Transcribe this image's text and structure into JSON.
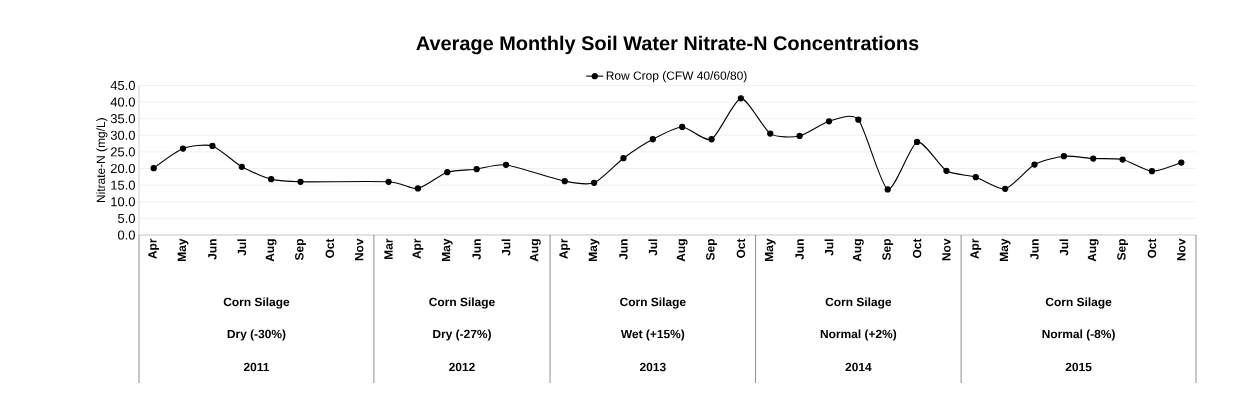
{
  "chart_data": {
    "type": "line",
    "title": "Average Monthly Soil Water Nitrate-N Concentrations",
    "ylabel": "Nitrate-N  (mg/L)",
    "categories": [
      "Apr",
      "May",
      "Jun",
      "Jul",
      "Aug",
      "Sep",
      "Oct",
      "Nov",
      "Mar",
      "Apr",
      "May",
      "Jun",
      "Jul",
      "Aug",
      "Apr",
      "May",
      "Jun",
      "Jul",
      "Aug",
      "Sep",
      "Oct",
      "May",
      "Jun",
      "Jul",
      "Aug",
      "Sep",
      "Oct",
      "Nov",
      "Apr",
      "May",
      "Jun",
      "Jul",
      "Aug",
      "Sep",
      "Oct",
      "Nov"
    ],
    "series": [
      {
        "name": "Row Crop (CFW 40/60/80)",
        "color": "#000000",
        "values": [
          20.1,
          26.0,
          26.8,
          20.5,
          16.8,
          16.0,
          null,
          null,
          16.0,
          14.0,
          18.9,
          19.8,
          21.1,
          null,
          16.2,
          15.7,
          23.1,
          28.8,
          32.5,
          28.8,
          41.1,
          30.5,
          29.8,
          34.2,
          34.7,
          13.7,
          28.0,
          19.3,
          17.4,
          13.9,
          21.2,
          23.7,
          23.0,
          22.7,
          19.2,
          21.8
        ]
      }
    ],
    "ylim": [
      0,
      45
    ],
    "yticks": [
      {
        "value": 0,
        "label": "0.0"
      },
      {
        "value": 5,
        "label": "5.0"
      },
      {
        "value": 10,
        "label": "10.0"
      },
      {
        "value": 15,
        "label": "15.0"
      },
      {
        "value": 20,
        "label": "20.0"
      },
      {
        "value": 25,
        "label": "25.0"
      },
      {
        "value": 30,
        "label": "30.0"
      },
      {
        "value": 35,
        "label": "35.0"
      },
      {
        "value": 40,
        "label": "40.0"
      },
      {
        "value": 45,
        "label": "45.0"
      }
    ],
    "annotations": [
      "Corn Silage",
      "Dry (-30%)",
      "2011",
      "Corn Silage",
      "Dry (-27%)",
      "2012",
      "Corn Silage",
      "Wet (+15%)",
      "2013",
      "Corn Silage",
      "Normal (+2%)",
      "2014",
      "Corn Silage",
      "Normal (-8%)",
      "2015"
    ],
    "grid": "y",
    "legend": "top",
    "marker": "circle",
    "line_style": "solid"
  }
}
